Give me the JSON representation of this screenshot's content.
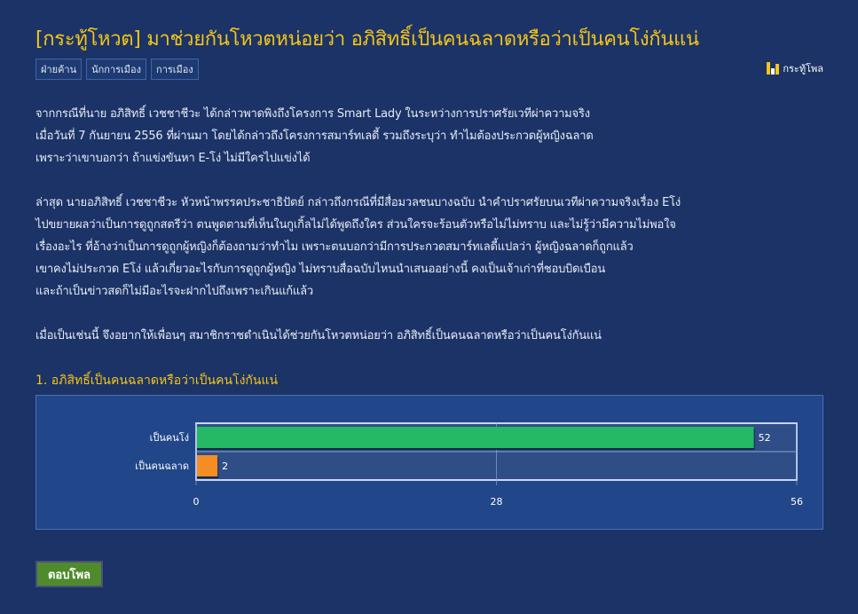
{
  "header": {
    "title": "[กระทู้โหวต] มาช่วยกันโหวตหน่อยว่า อภิสิทธิ์เป็นคนฉลาดหรือว่าเป็นคนโง่กันแน่",
    "tags": [
      "ฝ่ายค้าน",
      "นักการเมือง",
      "การเมือง"
    ],
    "category": {
      "icon": "bar-chart-icon",
      "label": "กระทู้โพล"
    }
  },
  "body": {
    "paragraphs": [
      [
        "จากกรณีที่นาย อภิสิทธิ์ เวชชาชีวะ ได้กล่าวพาดพิงถึงโครงการ Smart Lady ในระหว่างการปราศรัยเวทีผ่าความจริง",
        "เมื่อวันที่ 7 กันยายน 2556 ที่ผ่านมา โดยได้กล่าวถึงโครงการสมาร์ทเลดี้ รวมถึงระบุว่า ทำไมต้องประกวดผู้หญิงฉลาด",
        "เพราะว่าเขาบอกว่า ถ้าแข่งขันหา E-โง่ ไม่มีใครไปแข่งได้"
      ],
      [
        "ล่าสุด นายอภิสิทธิ์ เวชชาชีวะ หัวหน้าพรรคประชาธิปัตย์ กล่าวถึงกรณีที่มีสื่อมวลชนบางฉบับ นำคำปราศรัยบนเวทีผ่าความจริงเรื่อง Eโง่",
        "ไปขยายผลว่าเป็นการดูถูกสตรีว่า ตนพูดตามที่เห็นในกูเกิ้ลไม่ได้พูดถึงใคร ส่วนใครจะร้อนตัวหรือไม่ไม่ทราบ และไม่รู้ว่ามีความไม่พอใจ",
        "เรื่องอะไร ที่อ้างว่าเป็นการดูถูกผู้หญิงก็ต้องถามว่าทำไม เพราะตนบอกว่ามีการประกวดสมาร์ทเลดี้แปลว่า ผู้หญิงฉลาดก็ถูกแล้ว",
        "เขาคงไม่ประกวด Eโง่ แล้วเกี่ยวอะไรกับการดูถูกผู้หญิง ไม่ทราบสื่อฉบับไหนนำเสนออย่างนี้ คงเป็นเจ้าเก่าที่ชอบบิดเบือน",
        "และถ้าเป็นข่าวสดก็ไม่มีอะไรจะฝากไปถึงเพราะเกินแก้แล้ว"
      ],
      [
        "เมื่อเป็นเช่นนี้ จึงอยากให้เพื่อนๆ สมาชิกราชดำเนินได้ช่วยกันโหวตหน่อยว่า อภิสิทธิ์เป็นคนฉลาดหรือว่าเป็นคนโง่กันแน่"
      ]
    ]
  },
  "poll": {
    "question": "1. อภิสิทธิ์เป็นคนฉลาดหรือว่าเป็นคนโง่กันแน่",
    "vote_button": "ตอบโพล"
  },
  "chart_data": {
    "type": "bar",
    "orientation": "horizontal",
    "categories": [
      "เป็นคนโง่",
      "เป็นคนฉลาด"
    ],
    "values": [
      52,
      2
    ],
    "colors": [
      "#25b865",
      "#f58d25"
    ],
    "xlim": [
      0,
      56
    ],
    "xticks": [
      "0",
      "28",
      "56"
    ],
    "grid": true
  }
}
